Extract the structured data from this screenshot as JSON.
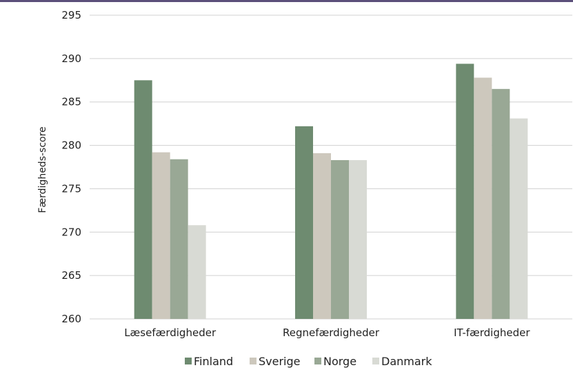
{
  "chart_data": {
    "type": "bar",
    "categories": [
      "Læsefærdigheder",
      "Regnefærdigheder",
      "IT-færdigheder"
    ],
    "series": [
      {
        "name": "Finland",
        "color": "#6e8b70",
        "values": [
          287.5,
          282.2,
          289.4
        ]
      },
      {
        "name": "Sverige",
        "color": "#cdc8bd",
        "values": [
          279.2,
          279.1,
          287.8
        ]
      },
      {
        "name": "Norge",
        "color": "#99a895",
        "values": [
          278.4,
          278.3,
          286.5
        ]
      },
      {
        "name": "Danmark",
        "color": "#d8dad4",
        "values": [
          270.8,
          278.3,
          283.1
        ]
      }
    ],
    "ylabel": "Færdigheds-score",
    "ylim": [
      260,
      295
    ],
    "yticks": [
      "260",
      "265",
      "270",
      "275",
      "280",
      "285",
      "290",
      "295"
    ],
    "grid": true,
    "legend": "bottom",
    "top_rule_color": "#5b4f7a",
    "grid_color": "#d0d0d0"
  }
}
